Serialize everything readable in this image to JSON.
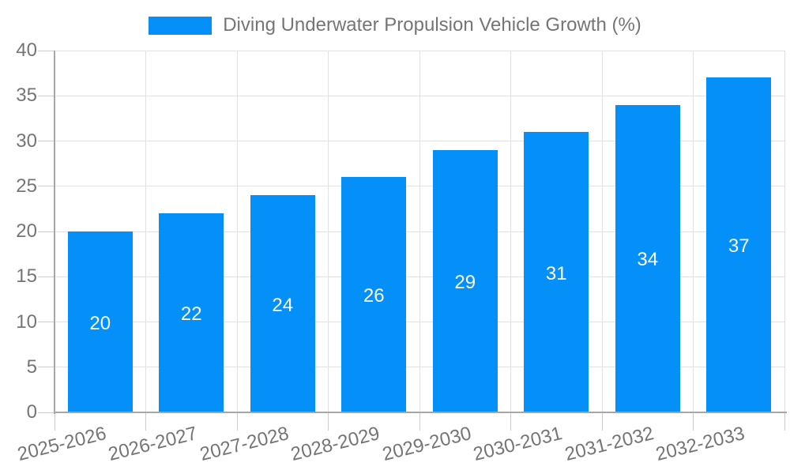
{
  "legend": {
    "label": "Diving Underwater Propulsion Vehicle Growth (%)"
  },
  "chart_data": {
    "type": "bar",
    "title": "Diving Underwater Propulsion Vehicle Growth (%)",
    "categories": [
      "2025-2026",
      "2026-2027",
      "2027-2028",
      "2028-2029",
      "2029-2030",
      "2030-2031",
      "2031-2032",
      "2032-2033"
    ],
    "values": [
      20,
      22,
      24,
      26,
      29,
      31,
      34,
      37
    ],
    "xlabel": "",
    "ylabel": "",
    "ylim": [
      0,
      40
    ],
    "ytick_step": 5,
    "yticks": [
      0,
      5,
      10,
      15,
      20,
      25,
      30,
      35,
      40
    ],
    "grid": "horizontal and vertical gridlines on",
    "legend_position": "top-center",
    "bar_label_position": "inside-center",
    "colors": {
      "bar": "#058ff8",
      "bar_label": "#ffffff",
      "axis_text": "#757575",
      "grid_line": "#e2e2e2",
      "tick_line": "#cccccc",
      "axis_line": "#a6a6a6",
      "background": "#ffffff"
    }
  }
}
